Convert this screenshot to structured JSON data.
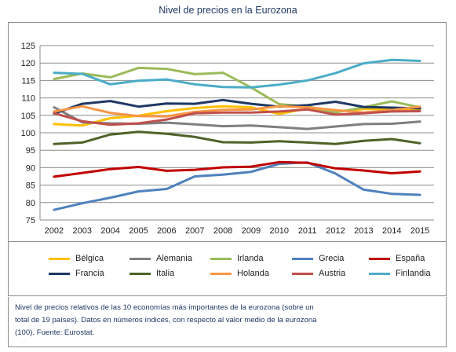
{
  "chart_data": {
    "type": "line",
    "title": "Nivel de precios en la Eurozona",
    "xlabel": "",
    "ylabel": "",
    "x": [
      2002,
      2003,
      2004,
      2005,
      2006,
      2007,
      2008,
      2009,
      2010,
      2011,
      2012,
      2013,
      2014,
      2015
    ],
    "ylim": [
      75,
      125
    ],
    "yticks": [
      75,
      80,
      85,
      90,
      95,
      100,
      105,
      110,
      115,
      120,
      125
    ],
    "grid": true,
    "legend_position": "bottom",
    "series": [
      {
        "name": "Bélgica",
        "color": "#ffc000",
        "values": [
          102.5,
          102.1,
          104.2,
          104.9,
          106.2,
          107.1,
          107.6,
          107.3,
          105.4,
          107.0,
          106.1,
          106.8,
          106.8,
          106.8
        ]
      },
      {
        "name": "Alemania",
        "color": "#7f7f7f",
        "values": [
          107.3,
          103.0,
          102.7,
          102.6,
          102.9,
          102.4,
          101.9,
          102.1,
          101.6,
          101.1,
          101.8,
          102.5,
          102.6,
          103.2
        ]
      },
      {
        "name": "Irlanda",
        "color": "#9bbb59",
        "values": [
          115.4,
          117.0,
          115.9,
          118.6,
          118.3,
          116.8,
          117.2,
          113.0,
          108.2,
          107.6,
          105.8,
          107.3,
          109.0,
          107.3
        ]
      },
      {
        "name": "Grecia",
        "color": "#4f81bd",
        "values": [
          77.9,
          79.8,
          81.4,
          83.2,
          83.9,
          87.5,
          88.0,
          88.8,
          91.1,
          91.5,
          88.3,
          83.7,
          82.5,
          82.2
        ]
      },
      {
        "name": "España",
        "color": "#c00000",
        "values": [
          87.4,
          88.5,
          89.6,
          90.2,
          89.1,
          89.4,
          90.1,
          90.3,
          91.6,
          91.4,
          89.8,
          89.2,
          88.4,
          88.9
        ]
      },
      {
        "name": "Francia",
        "color": "#1f3864",
        "values": [
          105.5,
          108.3,
          109.1,
          107.5,
          108.4,
          108.3,
          109.4,
          108.3,
          107.5,
          107.9,
          108.9,
          107.4,
          107.2,
          107.0
        ]
      },
      {
        "name": "Italia",
        "color": "#4f6228",
        "values": [
          96.8,
          97.2,
          99.5,
          100.3,
          99.7,
          98.8,
          97.3,
          97.2,
          97.6,
          97.2,
          96.8,
          97.7,
          98.2,
          97.0
        ]
      },
      {
        "name": "Holanda",
        "color": "#f79646",
        "values": [
          106.1,
          107.6,
          105.7,
          104.8,
          104.7,
          106.0,
          106.6,
          106.7,
          107.6,
          107.3,
          106.5,
          105.8,
          106.5,
          107.5
        ]
      },
      {
        "name": "Austria",
        "color": "#c0504d",
        "values": [
          105.6,
          103.3,
          102.3,
          102.7,
          103.8,
          105.6,
          105.8,
          105.8,
          106.1,
          106.7,
          105.2,
          105.6,
          106.1,
          106.2
        ]
      },
      {
        "name": "Finlandia",
        "color": "#4bacc6",
        "values": [
          117.2,
          116.9,
          113.9,
          114.9,
          115.3,
          113.9,
          113.1,
          113.0,
          113.8,
          115.0,
          117.1,
          119.9,
          120.9,
          120.6
        ]
      }
    ]
  },
  "note": {
    "line1": "Nivel de precios relativos de las 10 economías más importantes de la eurozona (sobre un",
    "line2": "total de 19 países).  Datos en números índices, con respecto al valor medio de la eurozona",
    "line3": "(100). Fuente: Eurostat."
  }
}
